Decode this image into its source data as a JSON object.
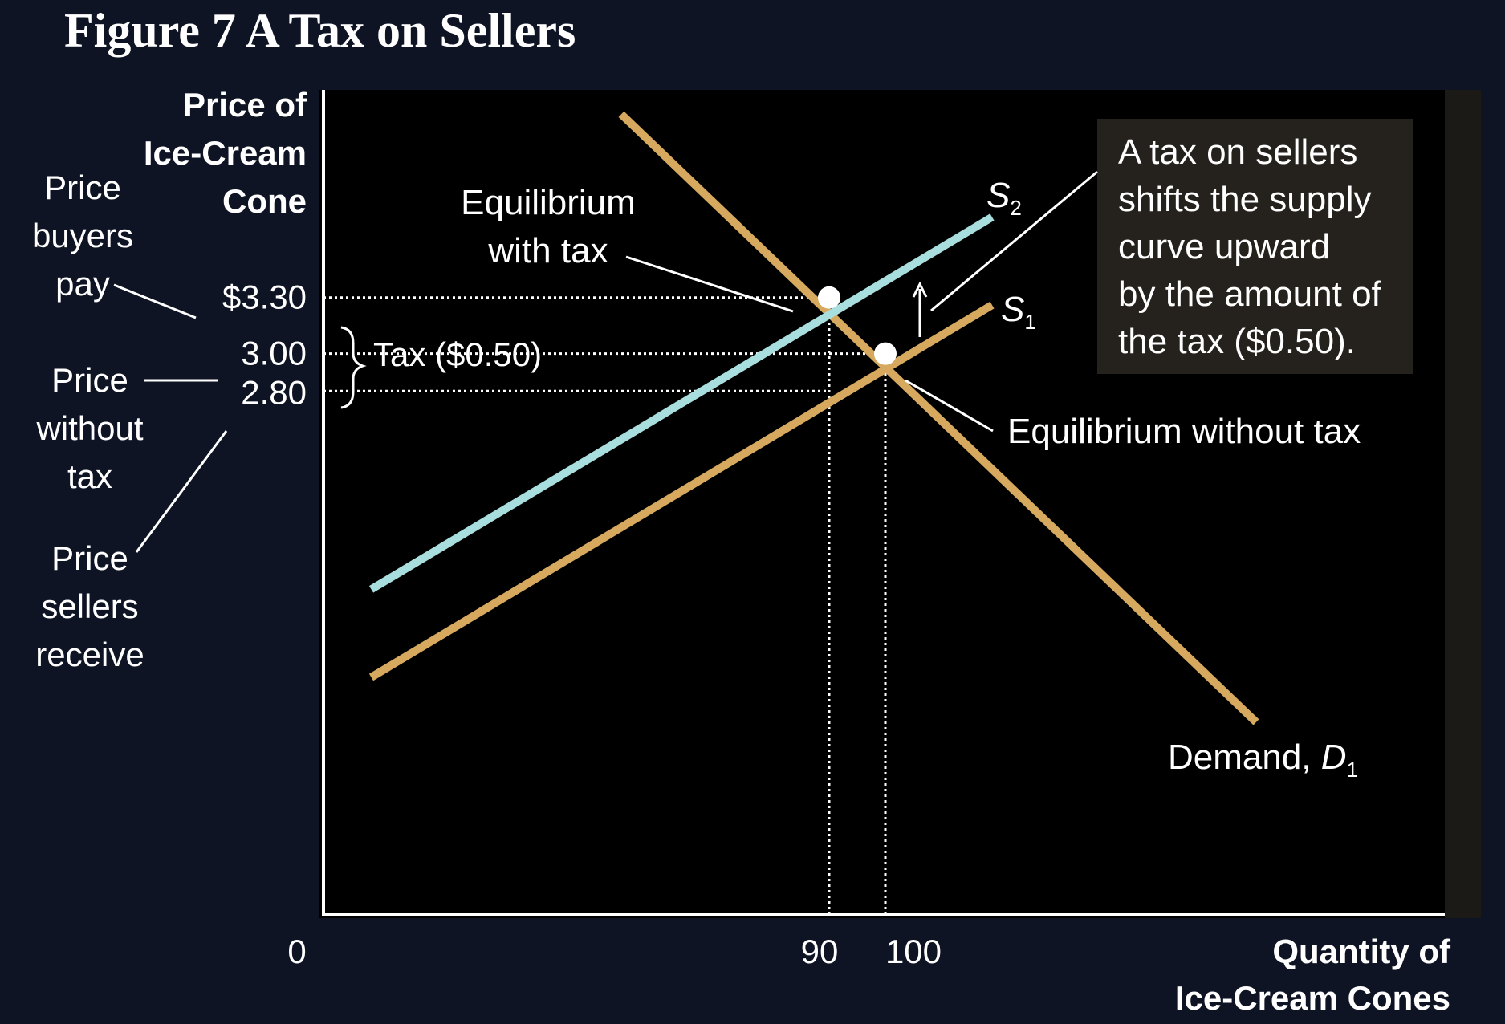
{
  "figure_title": "Figure 7 A Tax on Sellers",
  "colors": {
    "background": "#0f1424",
    "plot_background": "#000000",
    "supply_s1": "#d6a95f",
    "supply_s2": "#a8dede",
    "demand": "#d6a95f",
    "axis": "#ffffff",
    "callout_box": "#25211c"
  },
  "chart_data": {
    "type": "line",
    "title": "Figure 7 A Tax on Sellers",
    "xlabel": [
      "Quantity of",
      "Ice-Cream Cones"
    ],
    "ylabel": [
      "Price of",
      "Ice-Cream",
      "Cone"
    ],
    "origin_label": "0",
    "x_ticks": [
      {
        "value": 90,
        "label": "90"
      },
      {
        "value": 100,
        "label": "100"
      }
    ],
    "y_ticks": [
      {
        "value": 3.3,
        "label": "$3.30"
      },
      {
        "value": 3.0,
        "label": "3.00"
      },
      {
        "value": 2.8,
        "label": "2.80"
      }
    ],
    "xlim": [
      0,
      200
    ],
    "ylim": [
      0,
      4.41
    ],
    "grid": false,
    "series": [
      {
        "key": "demand",
        "label_text": "Demand, ",
        "label_sym": "D",
        "label_sub": "1",
        "points": [
          [
            53,
            4.28
          ],
          [
            166,
            1.03
          ]
        ]
      },
      {
        "key": "s1",
        "label_text": "",
        "label_sym": "S",
        "label_sub": "1",
        "points": [
          [
            8.5,
            1.27
          ],
          [
            119,
            3.26
          ]
        ]
      },
      {
        "key": "s2",
        "label_text": "",
        "label_sym": "S",
        "label_sub": "2",
        "points": [
          [
            8.5,
            1.74
          ],
          [
            119,
            3.73
          ]
        ]
      }
    ],
    "equilibria": [
      {
        "key": "with_tax",
        "x": 90,
        "y": 3.3
      },
      {
        "key": "without_tax",
        "x": 100,
        "y": 3.0
      }
    ],
    "dotted_guides": [
      {
        "from": [
          0,
          3.3
        ],
        "to": [
          90,
          3.3
        ]
      },
      {
        "from": [
          0,
          3.0
        ],
        "to": [
          100,
          3.0
        ]
      },
      {
        "from": [
          0,
          2.8
        ],
        "to": [
          90,
          2.8
        ]
      },
      {
        "from": [
          90,
          0
        ],
        "to": [
          90,
          3.3
        ]
      },
      {
        "from": [
          100,
          0
        ],
        "to": [
          100,
          3.0
        ]
      }
    ],
    "annotations": {
      "tax_bracket": "Tax ($0.50)",
      "eq_with_tax": [
        "Equilibrium",
        "with tax"
      ],
      "eq_without_tax": "Equilibrium without tax",
      "price_buyers_pay": [
        "Price",
        "buyers",
        "pay"
      ],
      "price_without_tax": [
        "Price",
        "without",
        "tax"
      ],
      "price_sellers_receive": [
        "Price",
        "sellers",
        "receive"
      ],
      "callout": [
        "A tax on sellers",
        "shifts the supply",
        "curve upward",
        "by the amount of",
        "the tax ($0.50)."
      ]
    }
  }
}
